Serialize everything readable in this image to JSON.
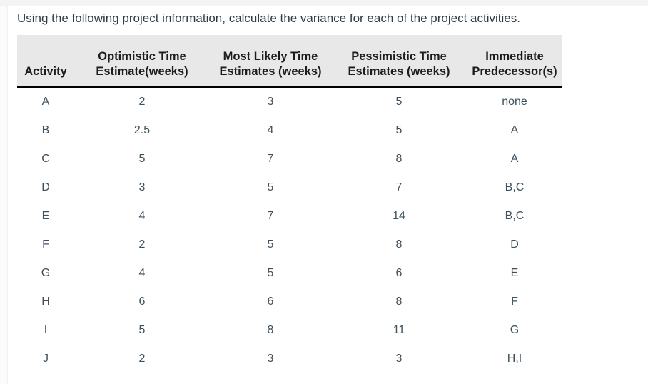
{
  "page": {
    "title": "Using the following project information, calculate the variance for each of the project activities."
  },
  "colors": {
    "header_bg": "#e8e8e8",
    "header_text": "#1c1c1c",
    "body_text": "#3f505c",
    "header_rule": "#000000",
    "page_bg": "#ffffff"
  },
  "table": {
    "columns": [
      {
        "label_lines": [
          "Activity"
        ]
      },
      {
        "label_lines": [
          "Optimistic Time",
          "Estimate(weeks)"
        ]
      },
      {
        "label_lines": [
          "Most Likely Time",
          "Estimates (weeks)"
        ]
      },
      {
        "label_lines": [
          "Pessimistic Time",
          "Estimates (weeks)"
        ]
      },
      {
        "label_lines": [
          "Immediate",
          "Predecessor(s)"
        ]
      }
    ],
    "rows": [
      {
        "activity": "A",
        "optimistic": "2",
        "most_likely": "3",
        "pessimistic": "5",
        "predecessors": "none"
      },
      {
        "activity": "B",
        "optimistic": "2.5",
        "most_likely": "4",
        "pessimistic": "5",
        "predecessors": "A"
      },
      {
        "activity": "C",
        "optimistic": "5",
        "most_likely": "7",
        "pessimistic": "8",
        "predecessors": "A"
      },
      {
        "activity": "D",
        "optimistic": "3",
        "most_likely": "5",
        "pessimistic": "7",
        "predecessors": "B,C"
      },
      {
        "activity": "E",
        "optimistic": "4",
        "most_likely": "7",
        "pessimistic": "14",
        "predecessors": "B,C"
      },
      {
        "activity": "F",
        "optimistic": "2",
        "most_likely": "5",
        "pessimistic": "8",
        "predecessors": "D"
      },
      {
        "activity": "G",
        "optimistic": "4",
        "most_likely": "5",
        "pessimistic": "6",
        "predecessors": "E"
      },
      {
        "activity": "H",
        "optimistic": "6",
        "most_likely": "6",
        "pessimistic": "8",
        "predecessors": "F"
      },
      {
        "activity": "I",
        "optimistic": "5",
        "most_likely": "8",
        "pessimistic": "11",
        "predecessors": "G"
      },
      {
        "activity": "J",
        "optimistic": "2",
        "most_likely": "3",
        "pessimistic": "3",
        "predecessors": "H,I"
      }
    ]
  }
}
